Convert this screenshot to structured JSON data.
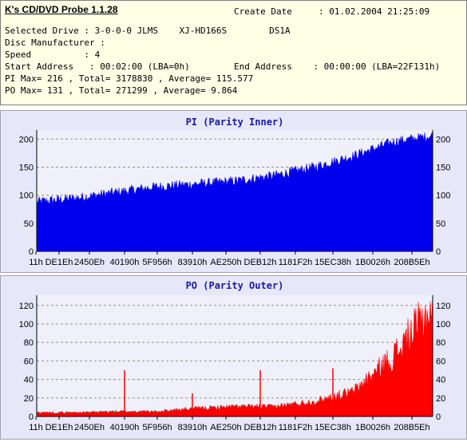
{
  "header": {
    "title": "K's CD/DVD Probe 1.1.28",
    "create_date_label": "Create Date",
    "create_date_value": ": 01.02.2004 21:25:09",
    "selected_drive_line": "Selected Drive : 3-0-0-0 JLMS    XJ-HD166S        DS1A",
    "disc_manufacturer_line": "Disc Manufacturer :",
    "speed_line": "Speed          : 4",
    "start_address_line": "Start Address   : 00:02:00 (LBA=0h)",
    "end_address_line": "End Address    : 00:00:00 (LBA=22F131h)",
    "pi_summary": "PI Max= 216 , Total= 3178830 , Average= 115.577",
    "po_summary": "PO Max= 131 , Total= 271299 , Average= 9.864"
  },
  "colors": {
    "pi": "#0000ee",
    "po": "#ff0000",
    "plot_bg": "#f0f0fa",
    "panel_bg": "#e6e8fa",
    "title": "#1a1aa0"
  },
  "chart_data": [
    {
      "type": "area",
      "title": "PI (Parity Inner)",
      "color": "#0000ee",
      "ylim": [
        0,
        216
      ],
      "yticks": [
        0,
        50,
        100,
        150,
        200
      ],
      "grid": true,
      "xticks": [
        "11h",
        "DE1Eh",
        "2450Eh",
        "40190h",
        "5F956h",
        "83910h",
        "AE250h",
        "DEB12h",
        "1181F2h",
        "15EC38h",
        "1B0026h",
        "208B5Eh"
      ],
      "x": [
        "11h",
        "2450Eh",
        "40190h",
        "5F956h",
        "83910h",
        "AE250h",
        "DEB12h",
        "1181F2h",
        "15EC38h",
        "1B0026h",
        "208B5Eh"
      ],
      "values": [
        88,
        95,
        105,
        115,
        120,
        125,
        135,
        150,
        170,
        195,
        206
      ]
    },
    {
      "type": "area",
      "title": "PO (Parity Outer)",
      "color": "#ff0000",
      "ylim": [
        0,
        131
      ],
      "yticks": [
        0,
        20,
        40,
        60,
        80,
        100,
        120
      ],
      "grid": true,
      "xticks": [
        "11h",
        "DE1Eh",
        "2450Eh",
        "40190h",
        "5F956h",
        "83910h",
        "AE250h",
        "DEB12h",
        "1181F2h",
        "15EC38h",
        "1B0026h",
        "208B5Eh"
      ],
      "x": [
        "11h",
        "2450Eh",
        "40190h",
        "5F956h",
        "83910h",
        "AE250h",
        "DEB12h",
        "1181F2h",
        "15EC38h",
        "1B0026h",
        "208B5Eh"
      ],
      "values": [
        4,
        4,
        5,
        5,
        8,
        10,
        10,
        15,
        25,
        60,
        110
      ],
      "spikes": [
        {
          "x": "40190h",
          "value": 50
        },
        {
          "x": "83910h",
          "value": 25
        },
        {
          "x": "DEB12h",
          "value": 50
        },
        {
          "x": "15EC38h",
          "value": 52
        }
      ]
    }
  ]
}
